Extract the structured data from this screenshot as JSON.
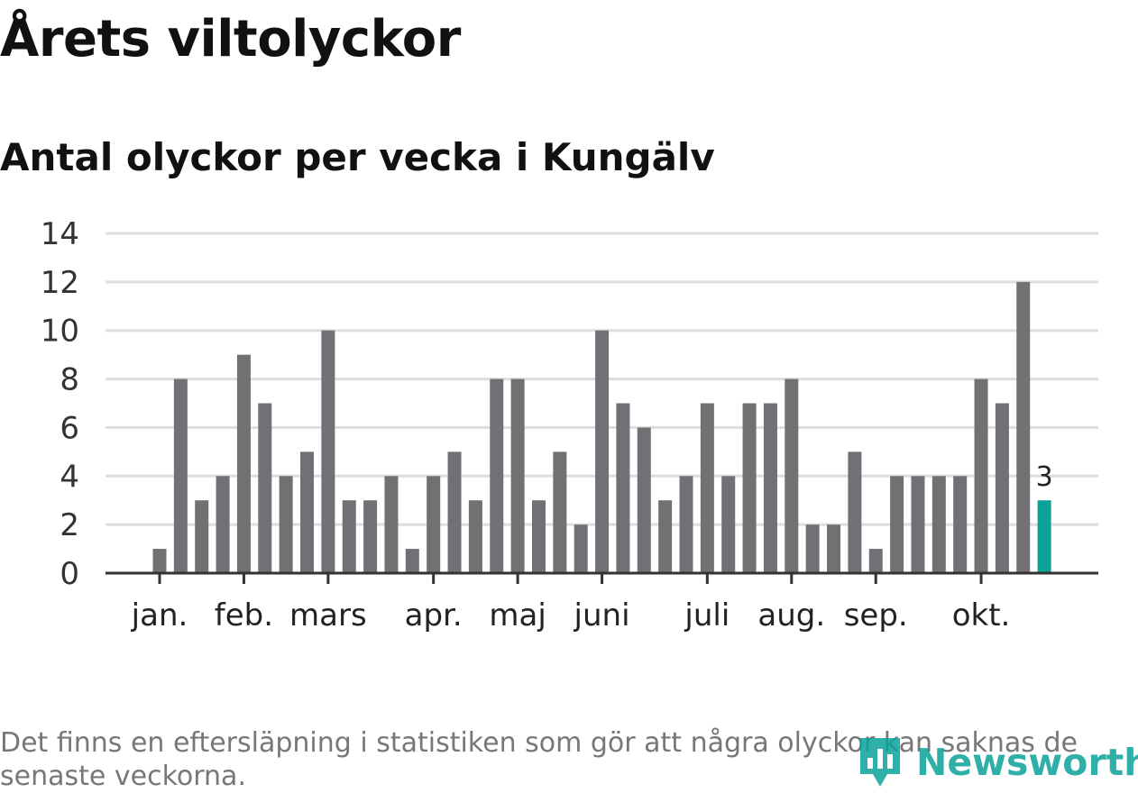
{
  "header": {
    "title": "Årets viltolyckor",
    "subtitle": "Antal olyckor per vecka i Kungälv"
  },
  "footnote": "Det finns en eftersläpning i statistiken som gör att några olyckor kan saknas de senaste veckorna.",
  "brand": {
    "name": "Newsworthy",
    "icon": "newsworthy-logo-icon",
    "color": "#0aa39a"
  },
  "colors": {
    "bar": "#717075",
    "highlight": "#0aa39a",
    "grid": "#dddddd",
    "axis": "#333333"
  },
  "chart_data": {
    "type": "bar",
    "title": "Antal olyckor per vecka i Kungälv",
    "xlabel": "",
    "ylabel": "",
    "ylim": [
      0,
      14
    ],
    "yticks": [
      0,
      2,
      4,
      6,
      8,
      10,
      12,
      14
    ],
    "grid": true,
    "values": [
      1,
      8,
      3,
      4,
      9,
      7,
      4,
      5,
      10,
      3,
      3,
      4,
      1,
      4,
      5,
      3,
      8,
      8,
      3,
      5,
      2,
      10,
      7,
      6,
      3,
      4,
      7,
      4,
      7,
      7,
      8,
      2,
      2,
      5,
      1,
      4,
      4,
      4,
      4,
      8,
      7,
      12,
      3
    ],
    "highlight_last": true,
    "last_value_label": "3",
    "month_labels": [
      {
        "label": "jan.",
        "week": 1
      },
      {
        "label": "feb.",
        "week": 5
      },
      {
        "label": "mars",
        "week": 9
      },
      {
        "label": "apr.",
        "week": 14
      },
      {
        "label": "maj",
        "week": 18
      },
      {
        "label": "juni",
        "week": 22
      },
      {
        "label": "juli",
        "week": 27
      },
      {
        "label": "aug.",
        "week": 31
      },
      {
        "label": "sep.",
        "week": 35
      },
      {
        "label": "okt.",
        "week": 40
      }
    ]
  }
}
